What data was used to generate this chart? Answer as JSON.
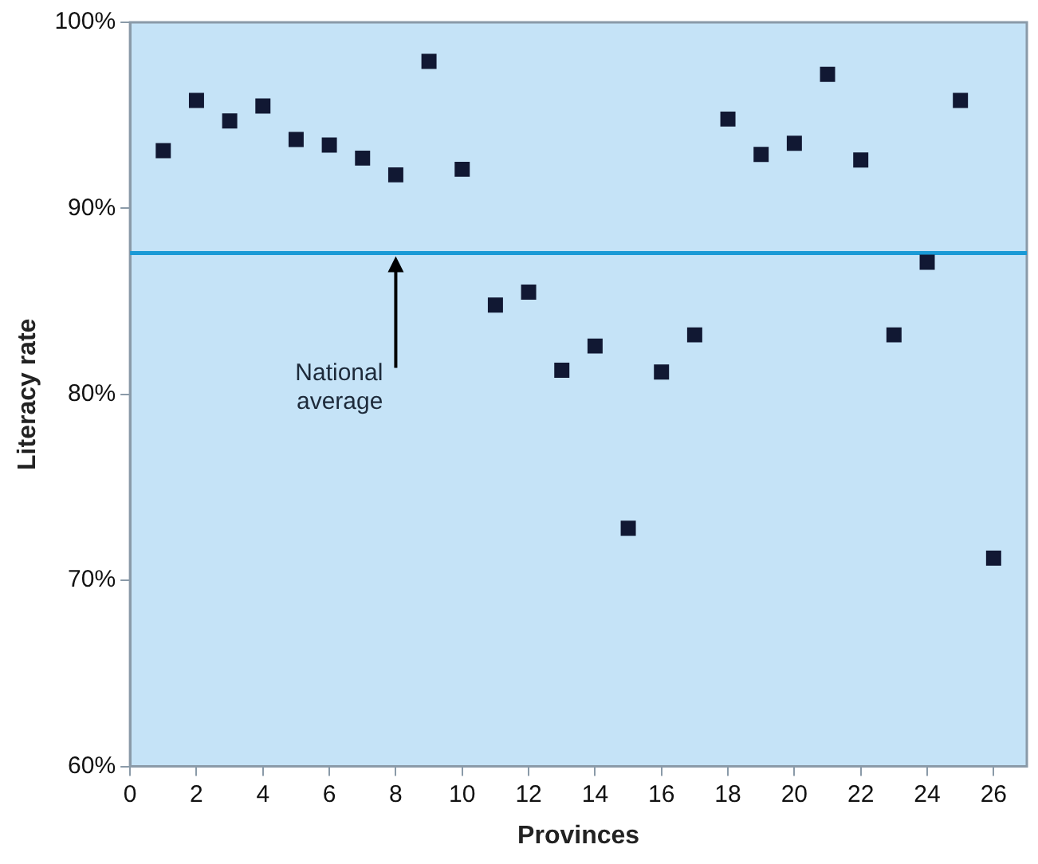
{
  "chart_data": {
    "type": "scatter",
    "xlabel": "Provinces",
    "ylabel": "Literacy rate",
    "x": [
      1,
      2,
      3,
      4,
      5,
      6,
      7,
      8,
      9,
      10,
      11,
      12,
      13,
      14,
      15,
      16,
      17,
      18,
      19,
      20,
      21,
      22,
      23,
      24,
      25,
      26
    ],
    "series": [
      {
        "color": "#111833",
        "values": [
          93.1,
          95.8,
          94.7,
          95.5,
          93.7,
          93.4,
          92.7,
          91.8,
          97.9,
          92.1,
          84.8,
          85.5,
          81.3,
          82.6,
          72.8,
          81.2,
          83.2,
          94.8,
          92.9,
          93.5,
          97.2,
          92.6,
          83.2,
          87.1,
          95.8,
          71.2
        ]
      }
    ],
    "marker": "square",
    "xlim": [
      0,
      27
    ],
    "xticks": [
      0,
      2,
      4,
      6,
      8,
      10,
      12,
      14,
      16,
      18,
      20,
      22,
      24,
      26
    ],
    "ylim": [
      60,
      100
    ],
    "yticks": [
      {
        "value": 60,
        "label": "60%"
      },
      {
        "value": 70,
        "label": "70%"
      },
      {
        "value": 80,
        "label": "80%"
      },
      {
        "value": 90,
        "label": "90%"
      },
      {
        "value": 100,
        "label": "100%"
      }
    ],
    "ref_lines": [
      {
        "axis": "y",
        "value": 87.6,
        "color": "#1a9ad6"
      }
    ],
    "annotations": [
      {
        "text": "National\naverage",
        "x": 8,
        "y": 87.6
      }
    ],
    "grid": false,
    "legend": false
  }
}
